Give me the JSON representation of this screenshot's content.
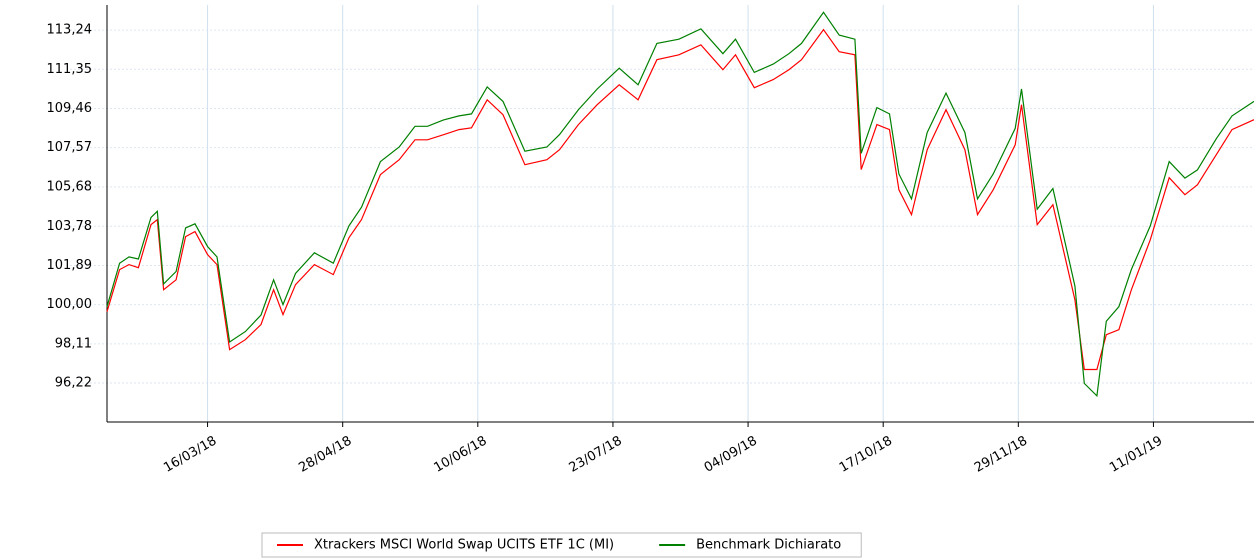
{
  "chart_data": {
    "type": "line",
    "x": [
      "12/02/18",
      "16/02/18",
      "19/02/18",
      "22/02/18",
      "26/02/18",
      "28/02/18",
      "02/03/18",
      "06/03/18",
      "09/03/18",
      "12/03/18",
      "16/03/18",
      "19/03/18",
      "23/03/18",
      "28/03/18",
      "02/04/18",
      "06/04/18",
      "09/04/18",
      "13/04/18",
      "19/04/18",
      "25/04/18",
      "30/04/18",
      "04/05/18",
      "10/05/18",
      "16/05/18",
      "21/05/18",
      "25/05/18",
      "30/05/18",
      "04/06/18",
      "08/06/18",
      "13/06/18",
      "18/06/18",
      "25/06/18",
      "02/07/18",
      "06/07/18",
      "12/07/18",
      "18/07/18",
      "25/07/18",
      "31/07/18",
      "06/08/18",
      "13/08/18",
      "20/08/18",
      "27/08/18",
      "31/08/18",
      "06/09/18",
      "12/09/18",
      "17/09/18",
      "21/09/18",
      "28/09/18",
      "03/10/18",
      "08/10/18",
      "10/10/18",
      "15/10/18",
      "19/10/18",
      "22/10/18",
      "26/10/18",
      "31/10/18",
      "06/11/18",
      "12/11/18",
      "16/11/18",
      "21/11/18",
      "28/11/18",
      "30/11/18",
      "05/12/18",
      "10/12/18",
      "17/12/18",
      "20/12/18",
      "24/12/18",
      "27/12/18",
      "31/12/18",
      "04/01/19",
      "10/01/19",
      "16/01/19",
      "21/01/19",
      "25/01/19",
      "31/01/19",
      "05/02/19",
      "12/02/19"
    ],
    "series": [
      {
        "name": "Xtrackers MSCI World Swap UCITS ETF 1C (MI)",
        "color": "#ff0000",
        "values": [
          99.66,
          101.69,
          101.93,
          101.78,
          103.86,
          104.1,
          100.72,
          101.2,
          103.28,
          103.52,
          102.41,
          101.93,
          97.83,
          98.31,
          99.04,
          100.72,
          99.52,
          100.96,
          101.93,
          101.45,
          103.23,
          104.1,
          106.27,
          106.99,
          107.95,
          107.95,
          108.19,
          108.44,
          108.53,
          109.88,
          109.16,
          106.75,
          106.99,
          107.47,
          108.68,
          109.64,
          110.6,
          109.88,
          111.81,
          112.05,
          112.53,
          111.33,
          112.05,
          110.46,
          110.85,
          111.33,
          111.81,
          113.26,
          112.2,
          112.05,
          106.51,
          108.68,
          108.44,
          105.54,
          104.34,
          107.47,
          109.4,
          107.47,
          104.34,
          105.54,
          107.71,
          109.64,
          103.86,
          104.82,
          100.24,
          96.87,
          96.87,
          98.55,
          98.79,
          100.72,
          103.13,
          106.12,
          105.3,
          105.78,
          107.23,
          108.44,
          108.92
        ]
      },
      {
        "name": "Benchmark Dichiarato",
        "color": "#008000",
        "values": [
          99.9,
          102.0,
          102.3,
          102.2,
          104.2,
          104.5,
          101.0,
          101.6,
          103.7,
          103.9,
          102.8,
          102.3,
          98.2,
          98.7,
          99.5,
          101.2,
          100.0,
          101.5,
          102.5,
          102.0,
          103.8,
          104.7,
          106.9,
          107.6,
          108.6,
          108.6,
          108.9,
          109.1,
          109.2,
          110.5,
          109.8,
          107.4,
          107.6,
          108.2,
          109.4,
          110.4,
          111.4,
          110.6,
          112.6,
          112.8,
          113.3,
          112.1,
          112.8,
          111.2,
          111.6,
          112.1,
          112.6,
          114.1,
          113.0,
          112.8,
          107.3,
          109.5,
          109.2,
          106.3,
          105.1,
          108.3,
          110.2,
          108.3,
          105.1,
          106.3,
          108.5,
          110.4,
          104.6,
          105.6,
          100.9,
          96.2,
          95.6,
          99.2,
          99.9,
          101.7,
          103.8,
          106.9,
          106.1,
          106.5,
          108.0,
          109.1,
          109.8
        ]
      }
    ],
    "xlim": [
      "12/02/18",
      "12/02/19"
    ],
    "xticks": [
      "16/03/18",
      "28/04/18",
      "10/06/18",
      "23/07/18",
      "04/09/18",
      "17/10/18",
      "29/11/18",
      "11/01/19"
    ],
    "ylim": [
      94.34,
      114.45
    ],
    "yticks": [
      {
        "value": 96.22,
        "label": "96,22"
      },
      {
        "value": 98.11,
        "label": "98,11"
      },
      {
        "value": 100.0,
        "label": "100,00"
      },
      {
        "value": 101.89,
        "label": "101,89"
      },
      {
        "value": 103.78,
        "label": "103,78"
      },
      {
        "value": 105.68,
        "label": "105,68"
      },
      {
        "value": 107.57,
        "label": "107,57"
      },
      {
        "value": 109.46,
        "label": "109,46"
      },
      {
        "value": 111.35,
        "label": "111,35"
      },
      {
        "value": 113.24,
        "label": "113,24"
      }
    ],
    "grid": true,
    "legend": "bottom"
  }
}
